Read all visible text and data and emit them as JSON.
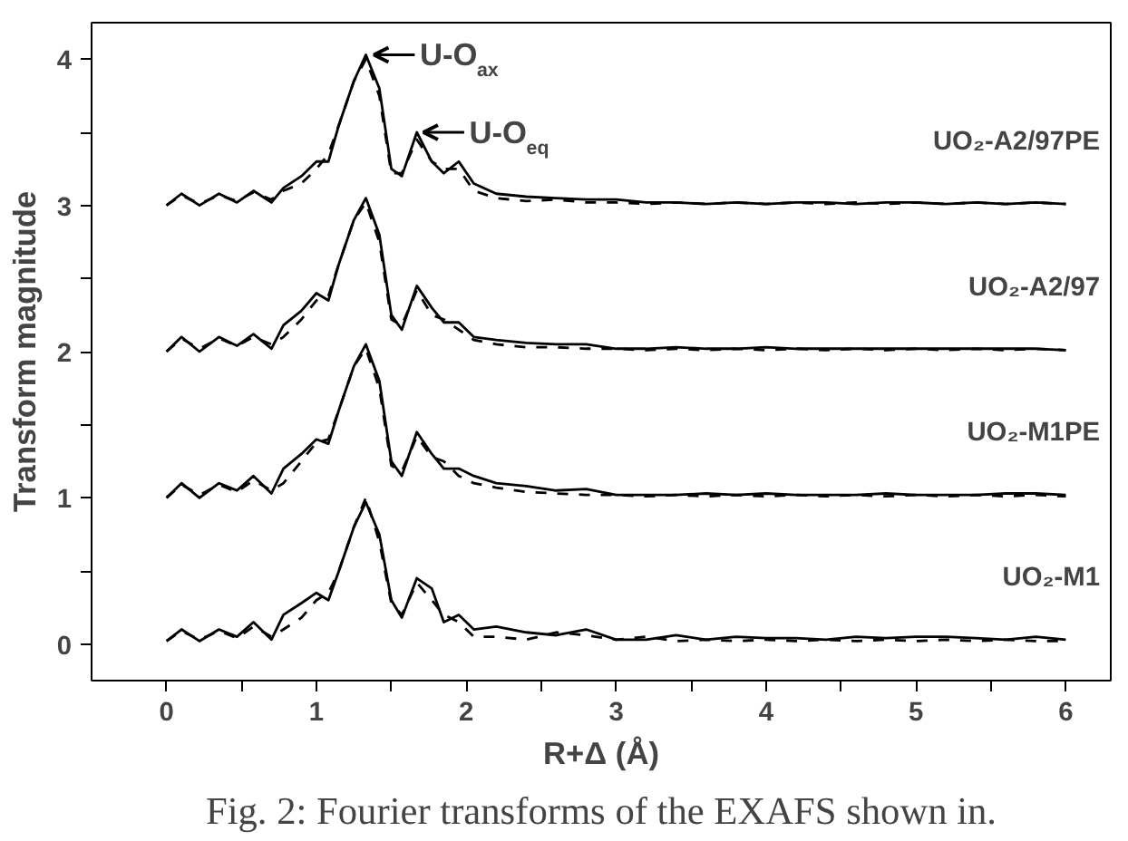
{
  "chart_data": {
    "type": "line",
    "xlabel": "R+Δ (Å)",
    "ylabel": "Transform magnitude",
    "x": [
      0,
      0.1,
      0.22,
      0.35,
      0.47,
      0.58,
      0.7,
      0.78,
      0.9,
      1.0,
      1.08,
      1.15,
      1.25,
      1.33,
      1.42,
      1.5,
      1.57,
      1.67,
      1.77,
      1.85,
      1.95,
      2.05,
      2.2,
      2.4,
      2.6,
      2.8,
      3.0,
      3.2,
      3.4,
      3.6,
      3.8,
      4.0,
      4.2,
      4.4,
      4.6,
      4.8,
      5.0,
      5.2,
      5.4,
      5.6,
      5.8,
      6.0
    ],
    "series": [
      {
        "name": "UO₂-M1",
        "color": "#000000",
        "line_style": "solid",
        "values": [
          0.02,
          0.1,
          0.02,
          0.1,
          0.05,
          0.15,
          0.03,
          0.2,
          0.28,
          0.35,
          0.3,
          0.5,
          0.8,
          0.97,
          0.75,
          0.3,
          0.18,
          0.45,
          0.38,
          0.15,
          0.2,
          0.1,
          0.12,
          0.08,
          0.06,
          0.1,
          0.03,
          0.03,
          0.06,
          0.03,
          0.05,
          0.04,
          0.04,
          0.03,
          0.05,
          0.04,
          0.05,
          0.05,
          0.04,
          0.03,
          0.05,
          0.03
        ]
      },
      {
        "color": "#000000",
        "line_style": "dashed",
        "values": [
          0.02,
          0.09,
          0.03,
          0.09,
          0.04,
          0.12,
          0.05,
          0.1,
          0.18,
          0.3,
          0.35,
          0.5,
          0.8,
          1.0,
          0.7,
          0.28,
          0.2,
          0.42,
          0.3,
          0.2,
          0.15,
          0.05,
          0.05,
          0.03,
          0.08,
          0.06,
          0.03,
          0.05,
          0.02,
          0.03,
          0.02,
          0.03,
          0.02,
          0.03,
          0.02,
          0.03,
          0.02,
          0.03,
          0.02,
          0.03,
          0.02,
          0.02
        ]
      },
      {
        "name": "UO₂-M1PE",
        "color": "#000000",
        "line_style": "solid",
        "values": [
          1.0,
          1.1,
          1.0,
          1.1,
          1.05,
          1.15,
          1.03,
          1.2,
          1.3,
          1.4,
          1.37,
          1.6,
          1.9,
          2.05,
          1.8,
          1.25,
          1.15,
          1.45,
          1.3,
          1.2,
          1.2,
          1.15,
          1.1,
          1.08,
          1.05,
          1.06,
          1.02,
          1.02,
          1.02,
          1.03,
          1.02,
          1.03,
          1.02,
          1.02,
          1.02,
          1.03,
          1.02,
          1.02,
          1.02,
          1.03,
          1.03,
          1.02
        ]
      },
      {
        "color": "#000000",
        "line_style": "dashed",
        "values": [
          1.0,
          1.09,
          1.02,
          1.09,
          1.04,
          1.12,
          1.05,
          1.1,
          1.25,
          1.38,
          1.4,
          1.6,
          1.9,
          2.02,
          1.75,
          1.22,
          1.18,
          1.42,
          1.28,
          1.25,
          1.15,
          1.1,
          1.07,
          1.04,
          1.03,
          1.02,
          1.02,
          1.01,
          1.02,
          1.01,
          1.02,
          1.01,
          1.02,
          1.01,
          1.02,
          1.01,
          1.02,
          1.01,
          1.02,
          1.01,
          1.02,
          1.01
        ]
      },
      {
        "name": "UO₂-A2/97",
        "color": "#000000",
        "line_style": "solid",
        "values": [
          2.0,
          2.1,
          2.0,
          2.1,
          2.04,
          2.12,
          2.02,
          2.18,
          2.28,
          2.4,
          2.35,
          2.6,
          2.9,
          3.05,
          2.8,
          2.25,
          2.15,
          2.45,
          2.3,
          2.2,
          2.2,
          2.1,
          2.08,
          2.06,
          2.05,
          2.05,
          2.02,
          2.02,
          2.03,
          2.02,
          2.02,
          2.03,
          2.02,
          2.02,
          2.02,
          2.02,
          2.02,
          2.02,
          2.02,
          2.02,
          2.02,
          2.01
        ]
      },
      {
        "color": "#000000",
        "line_style": "dashed",
        "values": [
          2.0,
          2.09,
          2.02,
          2.09,
          2.04,
          2.1,
          2.05,
          2.1,
          2.22,
          2.35,
          2.38,
          2.6,
          2.9,
          3.02,
          2.75,
          2.22,
          2.18,
          2.42,
          2.25,
          2.22,
          2.15,
          2.08,
          2.05,
          2.03,
          2.03,
          2.02,
          2.02,
          2.01,
          2.02,
          2.01,
          2.02,
          2.01,
          2.02,
          2.01,
          2.02,
          2.01,
          2.02,
          2.01,
          2.02,
          2.01,
          2.02,
          2.01
        ]
      },
      {
        "name": "UO₂-A2/97PE",
        "color": "#000000",
        "line_style": "solid",
        "values": [
          3.0,
          3.08,
          3.0,
          3.08,
          3.02,
          3.1,
          3.02,
          3.12,
          3.2,
          3.3,
          3.3,
          3.55,
          3.85,
          4.03,
          3.8,
          3.25,
          3.2,
          3.5,
          3.3,
          3.22,
          3.3,
          3.15,
          3.08,
          3.06,
          3.05,
          3.04,
          3.04,
          3.02,
          3.02,
          3.01,
          3.02,
          3.01,
          3.02,
          3.02,
          3.01,
          3.02,
          3.02,
          3.01,
          3.02,
          3.01,
          3.02,
          3.01
        ]
      },
      {
        "color": "#000000",
        "line_style": "dashed",
        "values": [
          3.0,
          3.07,
          3.01,
          3.07,
          3.03,
          3.09,
          3.04,
          3.1,
          3.15,
          3.25,
          3.35,
          3.55,
          3.85,
          4.0,
          3.75,
          3.22,
          3.22,
          3.45,
          3.3,
          3.25,
          3.25,
          3.1,
          3.05,
          3.03,
          3.04,
          3.02,
          3.02,
          3.01,
          3.02,
          3.01,
          3.02,
          3.01,
          3.02,
          3.01,
          3.02,
          3.01,
          3.02,
          3.01,
          3.02,
          3.01,
          3.02,
          3.01
        ]
      }
    ],
    "xlim": [
      -0.5,
      6.3
    ],
    "ylim": [
      -0.25,
      4.25
    ],
    "xticks": [
      0,
      {
        "value": 0.5,
        "label": null
      },
      1,
      {
        "value": 1.5,
        "label": null
      },
      2,
      {
        "value": 2.5,
        "label": null
      },
      3,
      {
        "value": 3.5,
        "label": null
      },
      4,
      {
        "value": 4.5,
        "label": null
      },
      5,
      {
        "value": 5.5,
        "label": null
      },
      6
    ],
    "yticks": [
      0,
      {
        "value": 0.5,
        "label": null
      },
      1,
      {
        "value": 1.5,
        "label": null
      },
      2,
      {
        "value": 2.5,
        "label": null
      },
      3,
      {
        "value": 3.5,
        "label": null
      },
      4
    ],
    "grid": false,
    "annotations": [
      {
        "text": "U-O$_{ax}$",
        "x": 1.35,
        "y": 4.03
      },
      {
        "text": "U-O$_{eq}$",
        "x": 1.68,
        "y": 3.5
      },
      "Fig. 2: Fourier transforms of the EXAFS shown in."
    ]
  }
}
